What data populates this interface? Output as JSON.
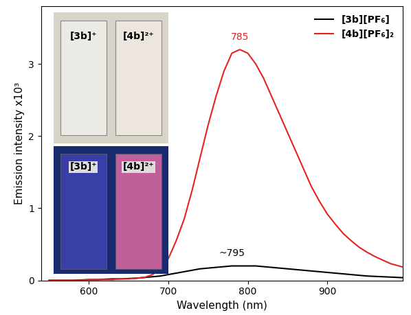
{
  "chart_data": {
    "type": "line",
    "x_label": "Wavelength (nm)",
    "y_label": "Emission intensity x10³",
    "x": [
      550,
      560,
      570,
      580,
      590,
      600,
      610,
      620,
      630,
      640,
      650,
      660,
      670,
      680,
      690,
      700,
      710,
      720,
      730,
      740,
      750,
      760,
      770,
      780,
      790,
      800,
      810,
      820,
      830,
      840,
      850,
      860,
      870,
      880,
      890,
      900,
      910,
      920,
      930,
      940,
      950,
      960,
      970,
      980,
      990,
      1000
    ],
    "series": [
      {
        "name": "[3b][PF₆]",
        "color": "#000000",
        "peak_label": "~795",
        "values": [
          0,
          0,
          0,
          0,
          0.005,
          0.01,
          0.01,
          0.015,
          0.02,
          0.02,
          0.025,
          0.03,
          0.04,
          0.05,
          0.06,
          0.08,
          0.1,
          0.12,
          0.14,
          0.16,
          0.17,
          0.18,
          0.19,
          0.2,
          0.2,
          0.2,
          0.2,
          0.19,
          0.18,
          0.17,
          0.16,
          0.15,
          0.14,
          0.13,
          0.12,
          0.11,
          0.1,
          0.09,
          0.08,
          0.07,
          0.06,
          0.055,
          0.05,
          0.045,
          0.04,
          0.035
        ]
      },
      {
        "name": "[4b][PF₆]₂",
        "color": "#e8211e",
        "peak_label": "785",
        "values": [
          0,
          0,
          0,
          0,
          0,
          0.01,
          0.01,
          0.01,
          0.01,
          0.02,
          0.02,
          0.03,
          0.04,
          0.08,
          0.15,
          0.3,
          0.55,
          0.85,
          1.25,
          1.7,
          2.15,
          2.55,
          2.9,
          3.15,
          3.2,
          3.15,
          3.0,
          2.8,
          2.55,
          2.3,
          2.05,
          1.8,
          1.55,
          1.3,
          1.1,
          0.92,
          0.78,
          0.65,
          0.55,
          0.46,
          0.39,
          0.33,
          0.28,
          0.23,
          0.2,
          0.17
        ]
      }
    ],
    "photo_labels": [
      "[3b]⁺",
      "[4b]²⁺"
    ],
    "xlim": [
      540,
      995
    ],
    "ylim": [
      0,
      3.8
    ],
    "xticks": [
      600,
      700,
      800,
      900
    ],
    "yticks": [
      0,
      1,
      2,
      3
    ],
    "legend": "upper right",
    "grid": false
  }
}
